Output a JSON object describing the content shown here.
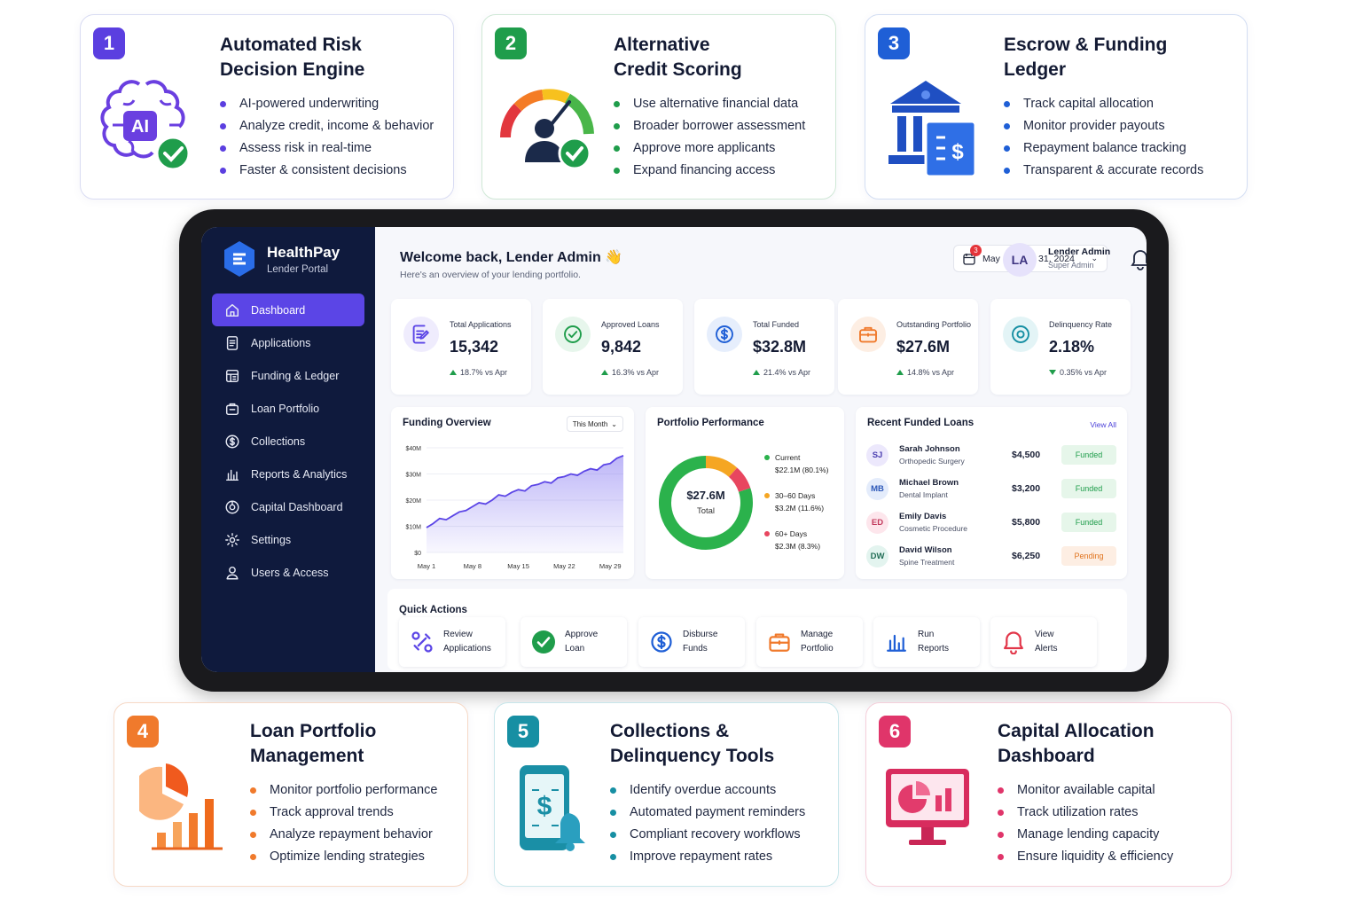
{
  "features_top": [
    {
      "number": "1",
      "title": "Automated Risk\nDecision Engine",
      "bullets": [
        "AI-powered underwriting",
        "Analyze credit, income & behavior",
        "Assess risk in real-time",
        "Faster & consistent decisions"
      ],
      "icon": "ai-brain-check-icon",
      "illustration_text": "AI"
    },
    {
      "number": "2",
      "title": "Alternative\nCredit Scoring",
      "bullets": [
        "Use alternative financial data",
        "Broader borrower assessment",
        "Approve more applicants",
        "Expand financing access"
      ],
      "icon": "credit-gauge-user-icon"
    },
    {
      "number": "3",
      "title": "Escrow & Funding\nLedger",
      "bullets": [
        "Track capital allocation",
        "Monitor provider payouts",
        "Repayment balance tracking",
        "Transparent & accurate records"
      ],
      "icon": "bank-ledger-icon"
    }
  ],
  "features_bottom": [
    {
      "number": "4",
      "title": "Loan Portfolio\nManagement",
      "bullets": [
        "Monitor portfolio performance",
        "Track approval trends",
        "Analyze repayment behavior",
        "Optimize lending strategies"
      ],
      "icon": "pie-bar-chart-icon"
    },
    {
      "number": "5",
      "title": "Collections &\nDelinquency Tools",
      "bullets": [
        "Identify overdue accounts",
        "Automated payment reminders",
        "Compliant recovery workflows",
        "Improve repayment rates"
      ],
      "icon": "phone-dollar-bell-icon"
    },
    {
      "number": "6",
      "title": "Capital Allocation\nDashboard",
      "bullets": [
        "Monitor available capital",
        "Track utilization rates",
        "Manage lending capacity",
        "Ensure liquidity & efficiency"
      ],
      "icon": "monitor-chart-icon"
    }
  ],
  "colors": {
    "card1": "#5b3fe0",
    "card2": "#1f9d4b",
    "card3": "#1f5fd6",
    "card4": "#f07a2c",
    "card5": "#178fa3",
    "card6": "#e0356a",
    "accent": "#5b45e6",
    "sidebar": "#0f1a3d"
  },
  "app": {
    "brand": {
      "name": "HealthPay",
      "subtitle": "Lender Portal"
    },
    "nav": [
      {
        "label": "Dashboard",
        "icon": "home-icon",
        "active": true
      },
      {
        "label": "Applications",
        "icon": "file-list-icon"
      },
      {
        "label": "Funding & Ledger",
        "icon": "ledger-icon"
      },
      {
        "label": "Loan Portfolio",
        "icon": "portfolio-icon"
      },
      {
        "label": "Collections",
        "icon": "dollar-circle-icon"
      },
      {
        "label": "Reports & Analytics",
        "icon": "bar-chart-icon"
      },
      {
        "label": "Capital Dashboard",
        "icon": "capital-icon"
      },
      {
        "label": "Settings",
        "icon": "gear-icon"
      },
      {
        "label": "Users & Access",
        "icon": "user-icon"
      }
    ],
    "header": {
      "welcome": "Welcome back, Lender Admin",
      "wave": "👋",
      "subtitle": "Here's an overview of your lending portfolio.",
      "date_range": "May 1 – May 31, 2024",
      "notifications": "3",
      "user_initials": "LA",
      "user_name": "Lender Admin",
      "user_role": "Super Admin"
    },
    "stats": [
      {
        "label": "Total Applications",
        "value": "15,342",
        "change": "18.7% vs Apr",
        "direction": "up",
        "icon": "document-edit-icon",
        "color": "#5b45e6",
        "bg": "#efecfd"
      },
      {
        "label": "Approved Loans",
        "value": "9,842",
        "change": "16.3% vs Apr",
        "direction": "up",
        "icon": "check-circle-icon",
        "color": "#1f9d4b",
        "bg": "#e7f6ec"
      },
      {
        "label": "Total Funded",
        "value": "$32.8M",
        "change": "21.4% vs Apr",
        "direction": "up",
        "icon": "dollar-circle-icon",
        "color": "#1f5fd6",
        "bg": "#e6eefc"
      },
      {
        "label": "Outstanding Portfolio",
        "value": "$27.6M",
        "change": "14.8% vs Apr",
        "direction": "up",
        "icon": "briefcase-icon",
        "color": "#f07a2c",
        "bg": "#fdeee3"
      },
      {
        "label": "Delinquency Rate",
        "value": "2.18%",
        "change": "0.35% vs Apr",
        "direction": "down",
        "icon": "alert-circle-icon",
        "color": "#178fa3",
        "bg": "#e3f4f6"
      }
    ],
    "funding_overview": {
      "title": "Funding Overview",
      "period": "This Month"
    },
    "portfolio": {
      "title": "Portfolio Performance",
      "center_value": "$27.6M",
      "center_label": "Total",
      "legend": [
        {
          "name": "Current",
          "detail": "$22.1M (80.1%)",
          "color": "#2bb24c"
        },
        {
          "name": "30–60 Days",
          "detail": "$3.2M (11.6%)",
          "color": "#f5a623"
        },
        {
          "name": "60+ Days",
          "detail": "$2.3M (8.3%)",
          "color": "#e8465f"
        }
      ]
    },
    "recent_loans": {
      "title": "Recent Funded Loans",
      "view_all": "View All",
      "rows": [
        {
          "initials": "SJ",
          "name": "Sarah Johnson",
          "procedure": "Orthopedic Surgery",
          "amount": "$4,500",
          "status": "Funded",
          "avatar_bg": "#ece8fc",
          "avatar_fg": "#4b3fb0"
        },
        {
          "initials": "MB",
          "name": "Michael Brown",
          "procedure": "Dental Implant",
          "amount": "$3,200",
          "status": "Funded",
          "avatar_bg": "#e4ecfb",
          "avatar_fg": "#2d58b8"
        },
        {
          "initials": "ED",
          "name": "Emily Davis",
          "procedure": "Cosmetic Procedure",
          "amount": "$5,800",
          "status": "Funded",
          "avatar_bg": "#fde6ec",
          "avatar_fg": "#c23a5d"
        },
        {
          "initials": "DW",
          "name": "David Wilson",
          "procedure": "Spine Treatment",
          "amount": "$6,250",
          "status": "Pending",
          "avatar_bg": "#e3f4ef",
          "avatar_fg": "#236e57"
        }
      ]
    },
    "quick_actions": {
      "title": "Quick Actions",
      "items": [
        {
          "label": "Review\nApplications",
          "icon": "review-icon"
        },
        {
          "label": "Approve\nLoan",
          "icon": "check-circle-icon"
        },
        {
          "label": "Disburse\nFunds",
          "icon": "dollar-circle-icon"
        },
        {
          "label": "Manage\nPortfolio",
          "icon": "briefcase-icon"
        },
        {
          "label": "Run\nReports",
          "icon": "bar-chart-icon"
        },
        {
          "label": "View\nAlerts",
          "icon": "bell-icon"
        }
      ]
    }
  },
  "chart_data": [
    {
      "type": "area",
      "title": "Funding Overview",
      "x_ticks": [
        "May 1",
        "May 8",
        "May 15",
        "May 22",
        "May 29"
      ],
      "y_ticks": [
        "$0",
        "$10M",
        "$20M",
        "$30M",
        "$40M"
      ],
      "ylim": [
        0,
        40
      ],
      "x": [
        1,
        2,
        3,
        4,
        5,
        6,
        7,
        8,
        9,
        10,
        11,
        12,
        13,
        14,
        15,
        16,
        17,
        18,
        19,
        20,
        21,
        22,
        23,
        24,
        25,
        26,
        27,
        28,
        29,
        30,
        31
      ],
      "values": [
        9.5,
        11,
        13,
        12.5,
        14,
        15.5,
        16,
        17.5,
        19,
        18.5,
        20,
        22,
        21.5,
        23,
        24,
        23.5,
        25.5,
        26,
        27,
        26.5,
        28.5,
        29,
        30,
        29.5,
        31,
        32,
        31.5,
        33.5,
        34,
        36,
        37
      ],
      "grid": true
    },
    {
      "type": "pie",
      "title": "Portfolio Performance",
      "labels": [
        "Current",
        "30–60 Days",
        "60+ Days"
      ],
      "values": [
        80.1,
        11.6,
        8.3
      ],
      "center": "$27.6M"
    }
  ]
}
